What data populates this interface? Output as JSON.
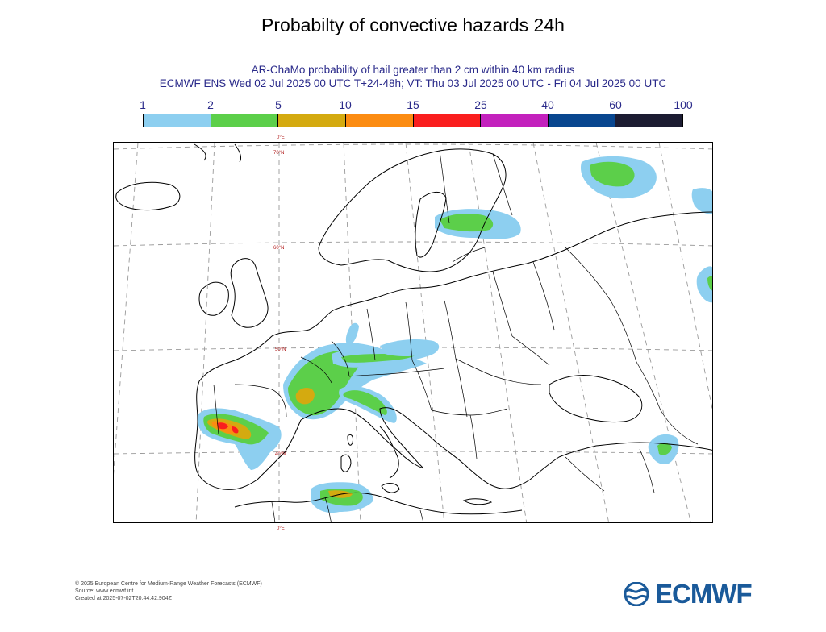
{
  "title": "Probabilty of convective hazards 24h",
  "subtitle_line1": "AR-ChaMo probability of hail greater than 2 cm within 40 km radius",
  "subtitle_line2": "ECMWF ENS Wed 02 Jul 2025 00 UTC T+24-48h; VT: Thu 03 Jul 2025 00 UTC - Fri 04 Jul 2025 00 UTC",
  "legend": {
    "ticks": [
      "1",
      "2",
      "5",
      "10",
      "15",
      "25",
      "40",
      "60",
      "100"
    ],
    "colors": [
      "#8dcff0",
      "#5ccf4a",
      "#d4aa10",
      "#fc8c12",
      "#fa1e1e",
      "#c321bd",
      "#08468f",
      "#1c1c32"
    ]
  },
  "map": {
    "lat_labels": [
      "70°N",
      "60°N",
      "50°N",
      "40°N"
    ],
    "lon_labels": [
      "0°E",
      "0°E"
    ],
    "colors": {
      "coast": "#000000",
      "grid": "#9a9a9a",
      "p1": "#8dcff0",
      "p2": "#5ccf4a",
      "p5": "#d4aa10",
      "p10": "#fc8c12",
      "p15": "#fa1e1e"
    }
  },
  "footer": {
    "line1": "© 2025 European Centre for Medium-Range Weather Forecasts (ECMWF)",
    "line2": "Source: www.ecmwf.int",
    "line3": "Created at 2025-07-02T20:44:42.904Z"
  },
  "logo": {
    "text": "ECMWF",
    "color": "#1a5a9a"
  }
}
